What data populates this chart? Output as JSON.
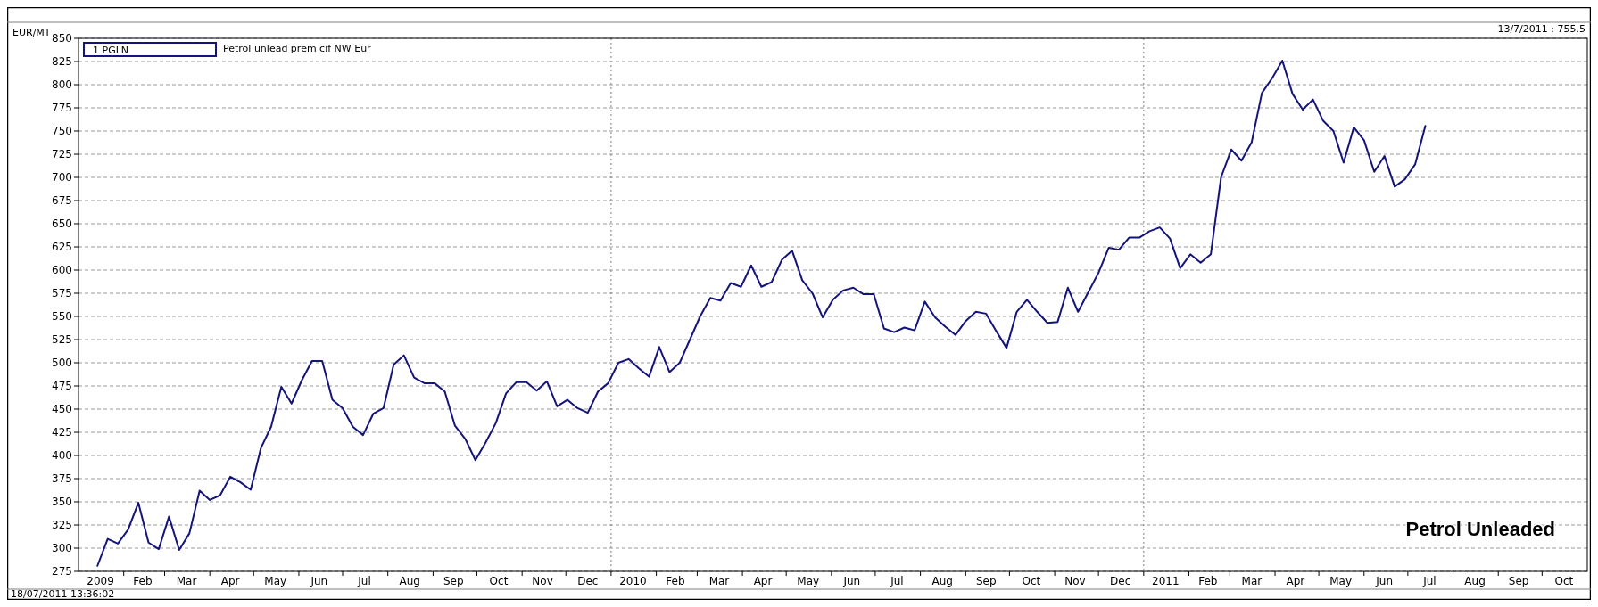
{
  "chart_data": {
    "type": "line",
    "ylabel": "EUR/MT",
    "annotations": [
      "13/7/2011 :   755.5",
      "Petrol unlead prem cif NW Eur",
      "Petrol Unleaded",
      "18/07/2011 13:36:02"
    ],
    "x": [
      "2009-01-14",
      "2009-01-21",
      "2009-01-28",
      "2009-02-04",
      "2009-02-11",
      "2009-02-18",
      "2009-02-25",
      "2009-03-04",
      "2009-03-11",
      "2009-03-18",
      "2009-03-25",
      "2009-04-01",
      "2009-04-08",
      "2009-04-15",
      "2009-04-22",
      "2009-04-29",
      "2009-05-06",
      "2009-05-13",
      "2009-05-20",
      "2009-05-27",
      "2009-06-03",
      "2009-06-10",
      "2009-06-17",
      "2009-06-24",
      "2009-07-01",
      "2009-07-08",
      "2009-07-15",
      "2009-07-22",
      "2009-07-29",
      "2009-08-05",
      "2009-08-12",
      "2009-08-19",
      "2009-08-26",
      "2009-09-02",
      "2009-09-09",
      "2009-09-16",
      "2009-09-23",
      "2009-09-30",
      "2009-10-07",
      "2009-10-14",
      "2009-10-21",
      "2009-10-28",
      "2009-11-04",
      "2009-11-11",
      "2009-11-18",
      "2009-11-25",
      "2009-12-02",
      "2009-12-09",
      "2009-12-16",
      "2009-12-23",
      "2009-12-30",
      "2010-01-06",
      "2010-01-13",
      "2010-01-20",
      "2010-01-27",
      "2010-02-03",
      "2010-02-10",
      "2010-02-17",
      "2010-02-24",
      "2010-03-03",
      "2010-03-10",
      "2010-03-17",
      "2010-03-24",
      "2010-03-31",
      "2010-04-07",
      "2010-04-14",
      "2010-04-21",
      "2010-04-28",
      "2010-05-05",
      "2010-05-12",
      "2010-05-19",
      "2010-05-26",
      "2010-06-02",
      "2010-06-09",
      "2010-06-16",
      "2010-06-23",
      "2010-06-30",
      "2010-07-07",
      "2010-07-14",
      "2010-07-21",
      "2010-07-28",
      "2010-08-04",
      "2010-08-11",
      "2010-08-18",
      "2010-08-25",
      "2010-09-01",
      "2010-09-08",
      "2010-09-15",
      "2010-09-22",
      "2010-09-29",
      "2010-10-06",
      "2010-10-13",
      "2010-10-20",
      "2010-10-27",
      "2010-11-03",
      "2010-11-10",
      "2010-11-17",
      "2010-11-24",
      "2010-12-01",
      "2010-12-08",
      "2010-12-15",
      "2010-12-22",
      "2010-12-29",
      "2011-01-05",
      "2011-01-12",
      "2011-01-19",
      "2011-01-26",
      "2011-02-02",
      "2011-02-09",
      "2011-02-16",
      "2011-02-23",
      "2011-03-02",
      "2011-03-09",
      "2011-03-16",
      "2011-03-23",
      "2011-03-30",
      "2011-04-06",
      "2011-04-13",
      "2011-04-20",
      "2011-04-27",
      "2011-05-04",
      "2011-05-11",
      "2011-05-18",
      "2011-05-25",
      "2011-06-01",
      "2011-06-08",
      "2011-06-15",
      "2011-06-22",
      "2011-06-29",
      "2011-07-06",
      "2011-07-13"
    ],
    "series": [
      {
        "name": "1 PGLN",
        "color": "#14147a",
        "values": [
          281,
          310,
          305,
          320,
          349,
          306,
          299,
          334,
          298,
          316,
          362,
          352,
          357,
          377,
          371,
          363,
          408,
          431,
          474,
          456,
          481,
          502,
          502,
          460,
          451,
          431,
          422,
          445,
          451,
          498,
          508,
          484,
          478,
          478,
          469,
          432,
          418,
          395,
          414,
          435,
          467,
          479,
          479,
          470,
          480,
          453,
          460,
          451,
          446,
          469,
          478,
          500,
          504,
          494,
          485,
          517,
          490,
          500,
          525,
          550,
          570,
          567,
          586,
          582,
          605,
          582,
          587,
          611,
          621,
          589,
          575,
          549,
          568,
          578,
          581,
          574,
          574,
          537,
          533,
          538,
          535,
          566,
          549,
          539,
          530,
          545,
          555,
          553,
          534,
          516,
          555,
          568,
          555,
          543,
          544,
          581,
          555,
          576,
          597,
          624,
          622,
          635,
          635,
          642,
          646,
          634,
          602,
          617,
          608,
          617,
          700,
          730,
          718,
          738,
          791,
          807,
          826,
          790,
          773,
          784,
          761,
          750,
          716,
          754,
          740,
          706,
          723,
          690,
          698,
          714,
          755.5
        ]
      }
    ],
    "xlim": [
      "2009-01-01",
      "2011-11-01"
    ],
    "xticks": [
      {
        "value": "2009-01-16",
        "label": "2009"
      },
      {
        "value": "2009-02-14",
        "label": "Feb"
      },
      {
        "value": "2009-03-16",
        "label": "Mar"
      },
      {
        "value": "2009-04-15",
        "label": "Apr"
      },
      {
        "value": "2009-05-16",
        "label": "May"
      },
      {
        "value": "2009-06-15",
        "label": "Jun"
      },
      {
        "value": "2009-07-16",
        "label": "Jul"
      },
      {
        "value": "2009-08-16",
        "label": "Aug"
      },
      {
        "value": "2009-09-15",
        "label": "Sep"
      },
      {
        "value": "2009-10-16",
        "label": "Oct"
      },
      {
        "value": "2009-11-15",
        "label": "Nov"
      },
      {
        "value": "2009-12-16",
        "label": "Dec"
      },
      {
        "value": "2010-01-16",
        "label": "2010"
      },
      {
        "value": "2010-02-14",
        "label": "Feb"
      },
      {
        "value": "2010-03-16",
        "label": "Mar"
      },
      {
        "value": "2010-04-15",
        "label": "Apr"
      },
      {
        "value": "2010-05-16",
        "label": "May"
      },
      {
        "value": "2010-06-15",
        "label": "Jun"
      },
      {
        "value": "2010-07-16",
        "label": "Jul"
      },
      {
        "value": "2010-08-16",
        "label": "Aug"
      },
      {
        "value": "2010-09-15",
        "label": "Sep"
      },
      {
        "value": "2010-10-16",
        "label": "Oct"
      },
      {
        "value": "2010-11-15",
        "label": "Nov"
      },
      {
        "value": "2010-12-16",
        "label": "Dec"
      },
      {
        "value": "2011-01-16",
        "label": "2011"
      },
      {
        "value": "2011-02-14",
        "label": "Feb"
      },
      {
        "value": "2011-03-16",
        "label": "Mar"
      },
      {
        "value": "2011-04-15",
        "label": "Apr"
      },
      {
        "value": "2011-05-16",
        "label": "May"
      },
      {
        "value": "2011-06-15",
        "label": "Jun"
      },
      {
        "value": "2011-07-16",
        "label": "Jul"
      },
      {
        "value": "2011-08-16",
        "label": "Aug"
      },
      {
        "value": "2011-09-15",
        "label": "Sep"
      },
      {
        "value": "2011-10-16",
        "label": "Oct"
      },
      {
        "value": "2009-02-01",
        "label": null
      },
      {
        "value": "2009-03-01",
        "label": null
      },
      {
        "value": "2009-04-01",
        "label": null
      },
      {
        "value": "2009-05-01",
        "label": null
      },
      {
        "value": "2009-06-01",
        "label": null
      },
      {
        "value": "2009-07-01",
        "label": null
      },
      {
        "value": "2009-08-01",
        "label": null
      },
      {
        "value": "2009-09-01",
        "label": null
      },
      {
        "value": "2009-10-01",
        "label": null
      },
      {
        "value": "2009-11-01",
        "label": null
      },
      {
        "value": "2009-12-01",
        "label": null
      },
      {
        "value": "2010-01-01",
        "label": null
      },
      {
        "value": "2010-02-01",
        "label": null
      },
      {
        "value": "2010-03-01",
        "label": null
      },
      {
        "value": "2010-04-01",
        "label": null
      },
      {
        "value": "2010-05-01",
        "label": null
      },
      {
        "value": "2010-06-01",
        "label": null
      },
      {
        "value": "2010-07-01",
        "label": null
      },
      {
        "value": "2010-08-01",
        "label": null
      },
      {
        "value": "2010-09-01",
        "label": null
      },
      {
        "value": "2010-10-01",
        "label": null
      },
      {
        "value": "2010-11-01",
        "label": null
      },
      {
        "value": "2010-12-01",
        "label": null
      },
      {
        "value": "2011-01-01",
        "label": null
      },
      {
        "value": "2011-02-01",
        "label": null
      },
      {
        "value": "2011-03-01",
        "label": null
      },
      {
        "value": "2011-04-01",
        "label": null
      },
      {
        "value": "2011-05-01",
        "label": null
      },
      {
        "value": "2011-06-01",
        "label": null
      },
      {
        "value": "2011-07-01",
        "label": null
      },
      {
        "value": "2011-08-01",
        "label": null
      },
      {
        "value": "2011-09-01",
        "label": null
      },
      {
        "value": "2011-10-01",
        "label": null
      }
    ],
    "ylim": [
      275,
      850
    ],
    "yticks": [
      275,
      300,
      325,
      350,
      375,
      400,
      425,
      450,
      475,
      500,
      525,
      550,
      575,
      600,
      625,
      650,
      675,
      700,
      725,
      750,
      775,
      800,
      825,
      850
    ],
    "ref_lines": [
      {
        "axis": "x",
        "value": "2010-01-01",
        "color": "#808080",
        "line_style": "dotted"
      },
      {
        "axis": "x",
        "value": "2011-01-01",
        "color": "#808080",
        "line_style": "dotted"
      }
    ],
    "grid": "y",
    "legend": "top left"
  }
}
